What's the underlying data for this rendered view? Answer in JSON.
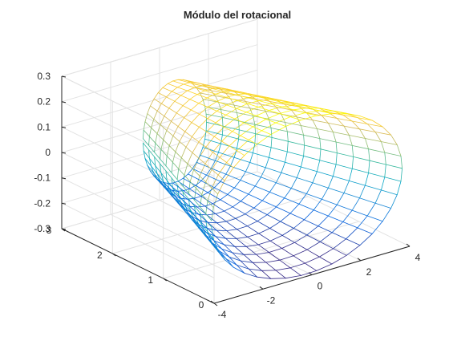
{
  "chart_data": {
    "type": "surface",
    "title": "Módulo del rotacional",
    "xlabel": "",
    "ylabel": "",
    "zlabel": "",
    "xlim": [
      -4,
      4
    ],
    "ylim": [
      0,
      3
    ],
    "zlim": [
      -0.3,
      0.3
    ],
    "x_ticks": [
      "-4",
      "-2",
      "0",
      "2",
      "4"
    ],
    "y_ticks": [
      "0",
      "1",
      "2",
      "3"
    ],
    "z_ticks": [
      "-0.3",
      "-0.2",
      "-0.1",
      "0",
      "0.1",
      "0.2",
      "0.3"
    ],
    "grid": true,
    "mesh": {
      "style": "wireframe",
      "colormap": "parula",
      "theta_range": [
        -3.1,
        3.1
      ],
      "y_range": [
        0.1,
        2.7
      ],
      "x": "r*cos(theta)",
      "y": "y",
      "z": "0.27*sin(theta)*(1.15 - 0.15*y)",
      "r_at_y0": 4,
      "r_at_y3": 1
    },
    "colors": {
      "parula": [
        "#352a87",
        "#0363e1",
        "#1485d4",
        "#06a7c6",
        "#38b99e",
        "#92bf73",
        "#d9ba56",
        "#fcce2e",
        "#f9fb0e"
      ]
    }
  }
}
